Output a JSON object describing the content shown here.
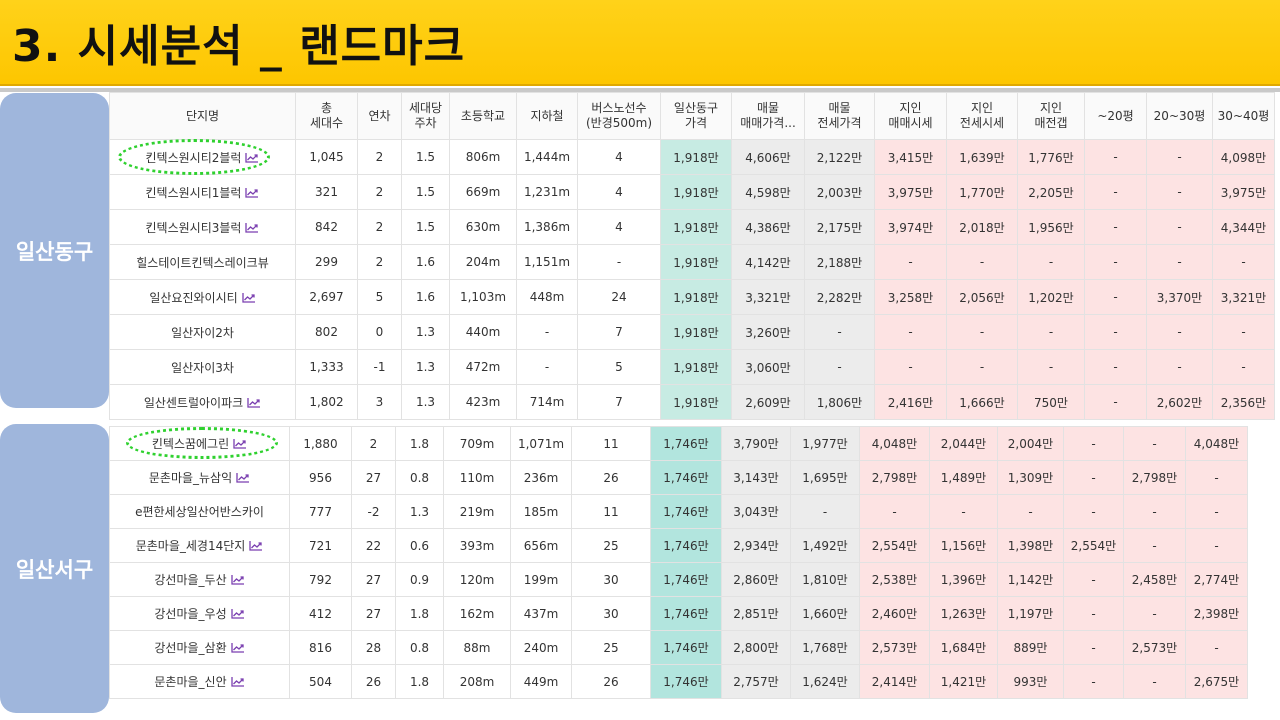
{
  "title": "3. 시세분석 _ 랜드마크",
  "districts": [
    "일산동구",
    "일산서구"
  ],
  "headers": [
    [
      "단지명"
    ],
    [
      "총",
      "세대수"
    ],
    [
      "연차"
    ],
    [
      "세대당",
      "주차"
    ],
    [
      "초등학교"
    ],
    [
      "지하철"
    ],
    [
      "버스노선수",
      "(반경500m)"
    ],
    [
      "일산동구",
      "가격"
    ],
    [
      "매물",
      "매매가격..."
    ],
    [
      "매물",
      "전세가격"
    ],
    [
      "지인",
      "매매시세"
    ],
    [
      "지인",
      "전세시세"
    ],
    [
      "지인",
      "매전갭"
    ],
    [
      "~20평"
    ],
    [
      "20~30평"
    ],
    [
      "30~40평"
    ]
  ],
  "chart_icon_name": "trend-chart-icon",
  "colors": {
    "banner": "#fdc600",
    "district": "#9fb6dc",
    "price_east": "#c7ebe3",
    "price_west": "#b2e5de",
    "listing": "#ececec",
    "jiin": "#fde3e3",
    "highlight": "#2fd12f"
  },
  "table1": [
    {
      "cells": [
        "킨텍스원시티2블럭",
        "1,045",
        "2",
        "1.5",
        "806m",
        "1,444m",
        "4",
        "1,918만",
        "4,606만",
        "2,122만",
        "3,415만",
        "1,639만",
        "1,776만",
        "-",
        "-",
        "4,098만"
      ],
      "icon": true
    },
    {
      "cells": [
        "킨텍스원시티1블럭",
        "321",
        "2",
        "1.5",
        "669m",
        "1,231m",
        "4",
        "1,918만",
        "4,598만",
        "2,003만",
        "3,975만",
        "1,770만",
        "2,205만",
        "-",
        "-",
        "3,975만"
      ],
      "icon": true
    },
    {
      "cells": [
        "킨텍스원시티3블럭",
        "842",
        "2",
        "1.5",
        "630m",
        "1,386m",
        "4",
        "1,918만",
        "4,386만",
        "2,175만",
        "3,974만",
        "2,018만",
        "1,956만",
        "-",
        "-",
        "4,344만"
      ],
      "icon": true
    },
    {
      "cells": [
        "힐스테이트킨텍스레이크뷰",
        "299",
        "2",
        "1.6",
        "204m",
        "1,151m",
        "-",
        "1,918만",
        "4,142만",
        "2,188만",
        "-",
        "-",
        "-",
        "-",
        "-",
        "-"
      ],
      "icon": false
    },
    {
      "cells": [
        "일산요진와이시티",
        "2,697",
        "5",
        "1.6",
        "1,103m",
        "448m",
        "24",
        "1,918만",
        "3,321만",
        "2,282만",
        "3,258만",
        "2,056만",
        "1,202만",
        "-",
        "3,370만",
        "3,321만"
      ],
      "icon": true
    },
    {
      "cells": [
        "일산자이2차",
        "802",
        "0",
        "1.3",
        "440m",
        "-",
        "7",
        "1,918만",
        "3,260만",
        "-",
        "-",
        "-",
        "-",
        "-",
        "-",
        "-"
      ],
      "icon": false
    },
    {
      "cells": [
        "일산자이3차",
        "1,333",
        "-1",
        "1.3",
        "472m",
        "-",
        "5",
        "1,918만",
        "3,060만",
        "-",
        "-",
        "-",
        "-",
        "-",
        "-",
        "-"
      ],
      "icon": false
    },
    {
      "cells": [
        "일산센트럴아이파크",
        "1,802",
        "3",
        "1.3",
        "423m",
        "714m",
        "7",
        "1,918만",
        "2,609만",
        "1,806만",
        "2,416만",
        "1,666만",
        "750만",
        "-",
        "2,602만",
        "2,356만"
      ],
      "icon": true
    }
  ],
  "table2": [
    {
      "cells": [
        "킨텍스꿈에그린",
        "1,880",
        "2",
        "1.8",
        "709m",
        "1,071m",
        "11",
        "1,746만",
        "3,790만",
        "1,977만",
        "4,048만",
        "2,044만",
        "2,004만",
        "-",
        "-",
        "4,048만"
      ],
      "icon": true
    },
    {
      "cells": [
        "문촌마을_뉴삼익",
        "956",
        "27",
        "0.8",
        "110m",
        "236m",
        "26",
        "1,746만",
        "3,143만",
        "1,695만",
        "2,798만",
        "1,489만",
        "1,309만",
        "-",
        "2,798만",
        "-"
      ],
      "icon": true
    },
    {
      "cells": [
        "e편한세상일산어반스카이",
        "777",
        "-2",
        "1.3",
        "219m",
        "185m",
        "11",
        "1,746만",
        "3,043만",
        "-",
        "-",
        "-",
        "-",
        "-",
        "-",
        "-"
      ],
      "icon": false
    },
    {
      "cells": [
        "문촌마을_세경14단지",
        "721",
        "22",
        "0.6",
        "393m",
        "656m",
        "25",
        "1,746만",
        "2,934만",
        "1,492만",
        "2,554만",
        "1,156만",
        "1,398만",
        "2,554만",
        "-",
        "-"
      ],
      "icon": true
    },
    {
      "cells": [
        "강선마을_두산",
        "792",
        "27",
        "0.9",
        "120m",
        "199m",
        "30",
        "1,746만",
        "2,860만",
        "1,810만",
        "2,538만",
        "1,396만",
        "1,142만",
        "-",
        "2,458만",
        "2,774만"
      ],
      "icon": true
    },
    {
      "cells": [
        "강선마을_우성",
        "412",
        "27",
        "1.8",
        "162m",
        "437m",
        "30",
        "1,746만",
        "2,851만",
        "1,660만",
        "2,460만",
        "1,263만",
        "1,197만",
        "-",
        "-",
        "2,398만"
      ],
      "icon": true
    },
    {
      "cells": [
        "강선마을_삼환",
        "816",
        "28",
        "0.8",
        "88m",
        "240m",
        "25",
        "1,746만",
        "2,800만",
        "1,768만",
        "2,573만",
        "1,684만",
        "889만",
        "-",
        "2,573만",
        "-"
      ],
      "icon": true
    },
    {
      "cells": [
        "문촌마을_신안",
        "504",
        "26",
        "1.8",
        "208m",
        "449m",
        "26",
        "1,746만",
        "2,757만",
        "1,624만",
        "2,414만",
        "1,421만",
        "993만",
        "-",
        "-",
        "2,675만"
      ],
      "icon": true
    }
  ]
}
